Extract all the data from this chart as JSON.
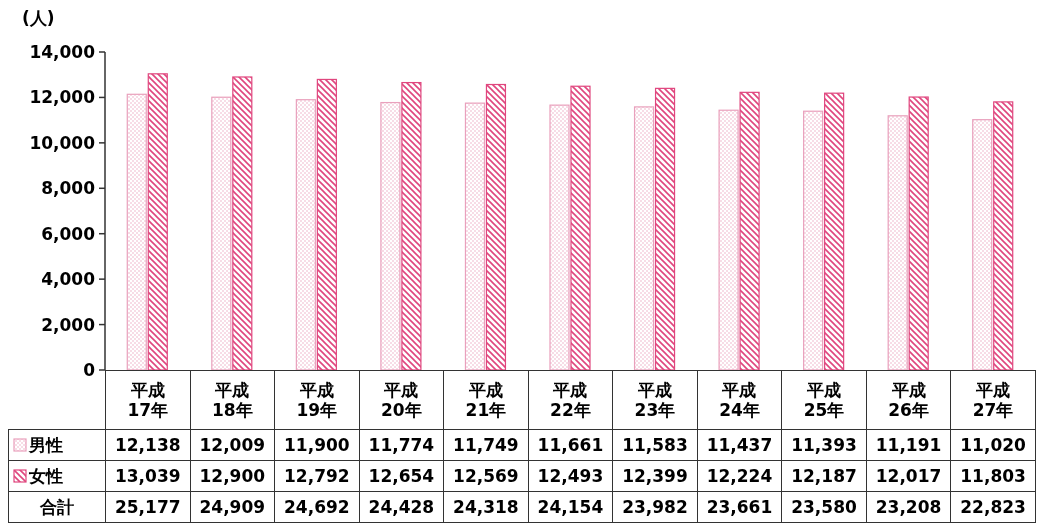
{
  "chart_data": {
    "type": "bar",
    "ylabel": "(人)",
    "categories": [
      "平成17年",
      "平成18年",
      "平成19年",
      "平成20年",
      "平成21年",
      "平成22年",
      "平成23年",
      "平成24年",
      "平成25年",
      "平成26年",
      "平成27年"
    ],
    "series": [
      {
        "name": "男性",
        "color": "#e9a0bc",
        "values": [
          12138,
          12009,
          11900,
          11774,
          11749,
          11661,
          11583,
          11437,
          11393,
          11191,
          11020
        ],
        "value_labels": [
          "12,138",
          "12,009",
          "11,900",
          "11,774",
          "11,749",
          "11,661",
          "11,583",
          "11,437",
          "11,393",
          "11,191",
          "11,020"
        ]
      },
      {
        "name": "女性",
        "color": "#e0467e",
        "values": [
          13039,
          12900,
          12792,
          12654,
          12569,
          12493,
          12399,
          12224,
          12187,
          12017,
          11803
        ],
        "value_labels": [
          "13,039",
          "12,900",
          "12,792",
          "12,654",
          "12,569",
          "12,493",
          "12,399",
          "12,224",
          "12,187",
          "12,017",
          "11,803"
        ]
      }
    ],
    "annotations": [
      "合計",
      "25,177",
      "24,909",
      "24,692",
      "24,428",
      "24,318",
      "24,154",
      "23,982",
      "23,661",
      "23,580",
      "23,208",
      "22,823"
    ],
    "legend": "bottom",
    "ylim": [
      0,
      14000
    ],
    "yticks": [
      0,
      {
        "value": 2000,
        "label": "2,000"
      },
      {
        "value": 4000,
        "label": "4,000"
      },
      {
        "value": 6000,
        "label": "6,000"
      },
      {
        "value": 8000,
        "label": "8,000"
      },
      {
        "value": 10000,
        "label": "10,000"
      },
      {
        "value": 12000,
        "label": "12,000"
      },
      {
        "value": 14000,
        "label": "14,000"
      }
    ],
    "grid": false
  }
}
